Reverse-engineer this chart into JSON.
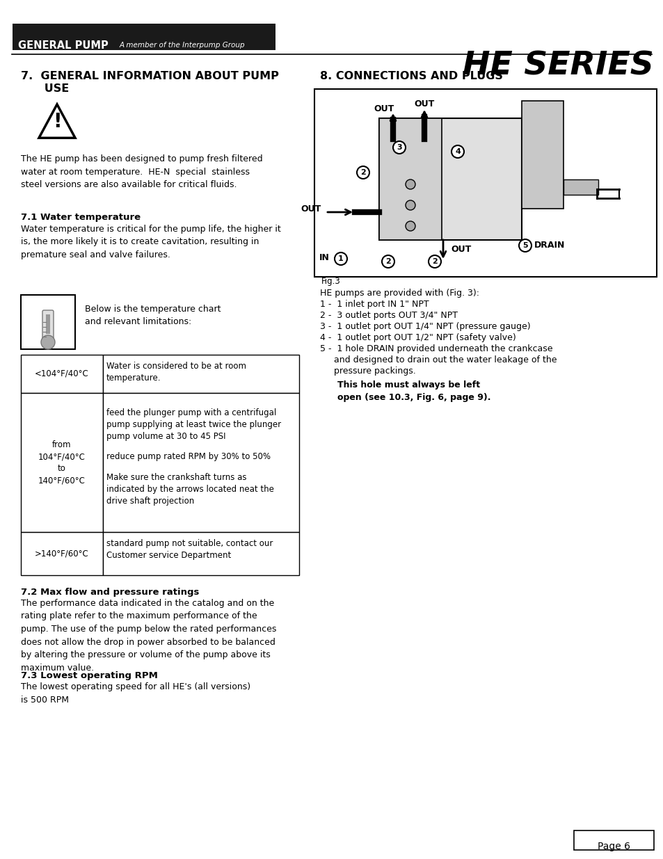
{
  "page_bg": "#ffffff",
  "header_bg": "#1a1a1a",
  "header_text": "GENERAL PUMP",
  "header_subtitle": "A member of the Interpump Group",
  "series_title": "HE SERIES",
  "section7_title_line1": "7.  GENERAL INFORMATION ABOUT PUMP",
  "section7_title_line2": "      USE",
  "section7_para": "The HE pump has been designed to pump fresh filtered\nwater at room temperature.  HE-N  special  stainless\nsteel versions are also available for critical fluids.",
  "section71_title": "7.1 Water temperature",
  "section71_para": "Water temperature is critical for the pump life, the higher it\nis, the more likely it is to create cavitation, resulting in\npremature seal and valve failures.",
  "thermometer_label": "Below is the temperature chart\nand relevant limitations:",
  "table_row1_col1": "<104°F/40°C",
  "table_row1_col2": "Water is considered to be at room\ntemperature.",
  "table_row2_col1": "from\n104°F/40°C\nto\n140°F/60°C",
  "table_row2_col2a": "feed the plunger pump with a centrifugal\npump supplying at least twice the plunger\npump volume at 30 to 45 PSI",
  "table_row2_col2b": "reduce pump rated RPM by 30% to 50%",
  "table_row2_col2c": "Make sure the crankshaft turns as\nindicated by the arrows located neat the\ndrive shaft projection",
  "table_row3_col1": ">140°F/60°C",
  "table_row3_col2": "standard pump not suitable, contact our\nCustomer service Department",
  "section72_title": "7.2 Max flow and pressure ratings",
  "section72_para": "The performance data indicated in the catalog and on the\nrating plate refer to the maximum performance of the\npump. The use of the pump below the rated performances\ndoes not allow the drop in power absorbed to be balanced\nby altering the pressure or volume of the pump above its\nmaximum value.",
  "section73_title": "7.3 Lowest operating RPM",
  "section73_para": "The lowest operating speed for all HE's (all versions)\nis 500 RPM",
  "section8_title": "8. CONNECTIONS AND PLUGS",
  "connections_line1": "HE pumps are provided with (Fig. 3):",
  "connections_line2": "1 -  1 inlet port IN 1\" NPT",
  "connections_line3": "2 -  3 outlet ports OUT 3/4\" NPT",
  "connections_line4": "3 -  1 outlet port OUT 1/4\" NPT (pressure gauge)",
  "connections_line5": "4 -  1 outlet port OUT 1/2\" NPT (safety valve)",
  "connections_line6": "5 -  1 hole DRAIN provided underneath the crankcase",
  "connections_line7": "     and designed to drain out the water leakage of the",
  "connections_line8": "     pressure packings.",
  "connections_bold": "This hole must always be left\nopen (see 10.3, Fig. 6, page 9).",
  "fig_label": "Fig.3",
  "page_num": "Page 6"
}
